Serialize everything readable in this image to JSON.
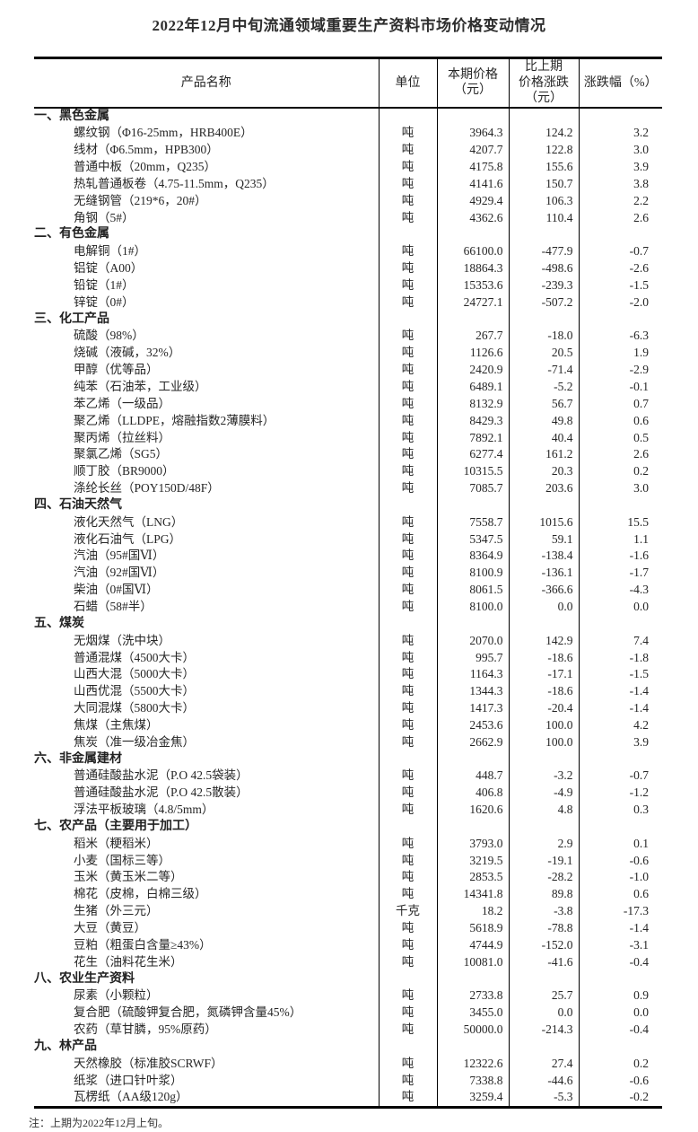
{
  "page": {
    "title": "2022年12月中旬流通领域重要生产资料市场价格变动情况",
    "note": "注：上期为2022年12月上旬。"
  },
  "colors": {
    "background": "#ffffff",
    "text": "#262626",
    "border": "#000000"
  },
  "table": {
    "headers": [
      "产品名称",
      "单位",
      "本期价格\n（元）",
      "比上期\n价格涨跌\n（元）",
      "涨跌幅（%）"
    ],
    "sections": [
      {
        "category": "一、黑色金属",
        "rows": [
          [
            "螺纹钢（Φ16-25mm，HRB400E）",
            "吨",
            "3964.3",
            "124.2",
            "3.2"
          ],
          [
            "线材（Φ6.5mm，HPB300）",
            "吨",
            "4207.7",
            "122.8",
            "3.0"
          ],
          [
            "普通中板（20mm，Q235）",
            "吨",
            "4175.8",
            "155.6",
            "3.9"
          ],
          [
            "热轧普通板卷（4.75-11.5mm，Q235）",
            "吨",
            "4141.6",
            "150.7",
            "3.8"
          ],
          [
            "无缝钢管（219*6，20#）",
            "吨",
            "4929.4",
            "106.3",
            "2.2"
          ],
          [
            "角钢（5#）",
            "吨",
            "4362.6",
            "110.4",
            "2.6"
          ]
        ]
      },
      {
        "category": "二、有色金属",
        "rows": [
          [
            "电解铜（1#）",
            "吨",
            "66100.0",
            "-477.9",
            "-0.7"
          ],
          [
            "铝锭（A00）",
            "吨",
            "18864.3",
            "-498.6",
            "-2.6"
          ],
          [
            "铅锭（1#）",
            "吨",
            "15353.6",
            "-239.3",
            "-1.5"
          ],
          [
            "锌锭（0#）",
            "吨",
            "24727.1",
            "-507.2",
            "-2.0"
          ]
        ]
      },
      {
        "category": "三、化工产品",
        "rows": [
          [
            "硫酸（98%）",
            "吨",
            "267.7",
            "-18.0",
            "-6.3"
          ],
          [
            "烧碱（液碱，32%）",
            "吨",
            "1126.6",
            "20.5",
            "1.9"
          ],
          [
            "甲醇（优等品）",
            "吨",
            "2420.9",
            "-71.4",
            "-2.9"
          ],
          [
            "纯苯（石油苯，工业级）",
            "吨",
            "6489.1",
            "-5.2",
            "-0.1"
          ],
          [
            "苯乙烯（一级品）",
            "吨",
            "8132.9",
            "56.7",
            "0.7"
          ],
          [
            "聚乙烯（LLDPE，熔融指数2薄膜料）",
            "吨",
            "8429.3",
            "49.8",
            "0.6"
          ],
          [
            "聚丙烯（拉丝料）",
            "吨",
            "7892.1",
            "40.4",
            "0.5"
          ],
          [
            "聚氯乙烯（SG5）",
            "吨",
            "6277.4",
            "161.2",
            "2.6"
          ],
          [
            "顺丁胶（BR9000）",
            "吨",
            "10315.5",
            "20.3",
            "0.2"
          ],
          [
            "涤纶长丝（POY150D/48F）",
            "吨",
            "7085.7",
            "203.6",
            "3.0"
          ]
        ]
      },
      {
        "category": "四、石油天然气",
        "rows": [
          [
            "液化天然气（LNG）",
            "吨",
            "7558.7",
            "1015.6",
            "15.5"
          ],
          [
            "液化石油气（LPG）",
            "吨",
            "5347.5",
            "59.1",
            "1.1"
          ],
          [
            "汽油（95#国Ⅵ）",
            "吨",
            "8364.9",
            "-138.4",
            "-1.6"
          ],
          [
            "汽油（92#国Ⅵ）",
            "吨",
            "8100.9",
            "-136.1",
            "-1.7"
          ],
          [
            "柴油（0#国Ⅵ）",
            "吨",
            "8061.5",
            "-366.6",
            "-4.3"
          ],
          [
            "石蜡（58#半）",
            "吨",
            "8100.0",
            "0.0",
            "0.0"
          ]
        ]
      },
      {
        "category": "五、煤炭",
        "rows": [
          [
            "无烟煤（洗中块）",
            "吨",
            "2070.0",
            "142.9",
            "7.4"
          ],
          [
            "普通混煤（4500大卡）",
            "吨",
            "995.7",
            "-18.6",
            "-1.8"
          ],
          [
            "山西大混（5000大卡）",
            "吨",
            "1164.3",
            "-17.1",
            "-1.5"
          ],
          [
            "山西优混（5500大卡）",
            "吨",
            "1344.3",
            "-18.6",
            "-1.4"
          ],
          [
            "大同混煤（5800大卡）",
            "吨",
            "1417.3",
            "-20.4",
            "-1.4"
          ],
          [
            "焦煤（主焦煤）",
            "吨",
            "2453.6",
            "100.0",
            "4.2"
          ],
          [
            "焦炭（准一级冶金焦）",
            "吨",
            "2662.9",
            "100.0",
            "3.9"
          ]
        ]
      },
      {
        "category": "六、非金属建材",
        "rows": [
          [
            "普通硅酸盐水泥（P.O 42.5袋装）",
            "吨",
            "448.7",
            "-3.2",
            "-0.7"
          ],
          [
            "普通硅酸盐水泥（P.O 42.5散装）",
            "吨",
            "406.8",
            "-4.9",
            "-1.2"
          ],
          [
            "浮法平板玻璃（4.8/5mm）",
            "吨",
            "1620.6",
            "4.8",
            "0.3"
          ]
        ]
      },
      {
        "category": "七、农产品（主要用于加工）",
        "rows": [
          [
            "稻米（粳稻米）",
            "吨",
            "3793.0",
            "2.9",
            "0.1"
          ],
          [
            "小麦（国标三等）",
            "吨",
            "3219.5",
            "-19.1",
            "-0.6"
          ],
          [
            "玉米（黄玉米二等）",
            "吨",
            "2853.5",
            "-28.2",
            "-1.0"
          ],
          [
            "棉花（皮棉，白棉三级）",
            "吨",
            "14341.8",
            "89.8",
            "0.6"
          ],
          [
            "生猪（外三元）",
            "千克",
            "18.2",
            "-3.8",
            "-17.3"
          ],
          [
            "大豆（黄豆）",
            "吨",
            "5618.9",
            "-78.8",
            "-1.4"
          ],
          [
            "豆粕（粗蛋白含量≥43%）",
            "吨",
            "4744.9",
            "-152.0",
            "-3.1"
          ],
          [
            "花生（油料花生米）",
            "吨",
            "10081.0",
            "-41.6",
            "-0.4"
          ]
        ]
      },
      {
        "category": "八、农业生产资料",
        "rows": [
          [
            "尿素（小颗粒）",
            "吨",
            "2733.8",
            "25.7",
            "0.9"
          ],
          [
            "复合肥（硫酸钾复合肥，氮磷钾含量45%）",
            "吨",
            "3455.0",
            "0.0",
            "0.0"
          ],
          [
            "农药（草甘膦，95%原药）",
            "吨",
            "50000.0",
            "-214.3",
            "-0.4"
          ]
        ]
      },
      {
        "category": "九、林产品",
        "rows": [
          [
            "天然橡胶（标准胶SCRWF）",
            "吨",
            "12322.6",
            "27.4",
            "0.2"
          ],
          [
            "纸浆（进口针叶浆）",
            "吨",
            "7338.8",
            "-44.6",
            "-0.6"
          ],
          [
            "瓦楞纸（AA级120g）",
            "吨",
            "3259.4",
            "-5.3",
            "-0.2"
          ]
        ]
      }
    ]
  }
}
